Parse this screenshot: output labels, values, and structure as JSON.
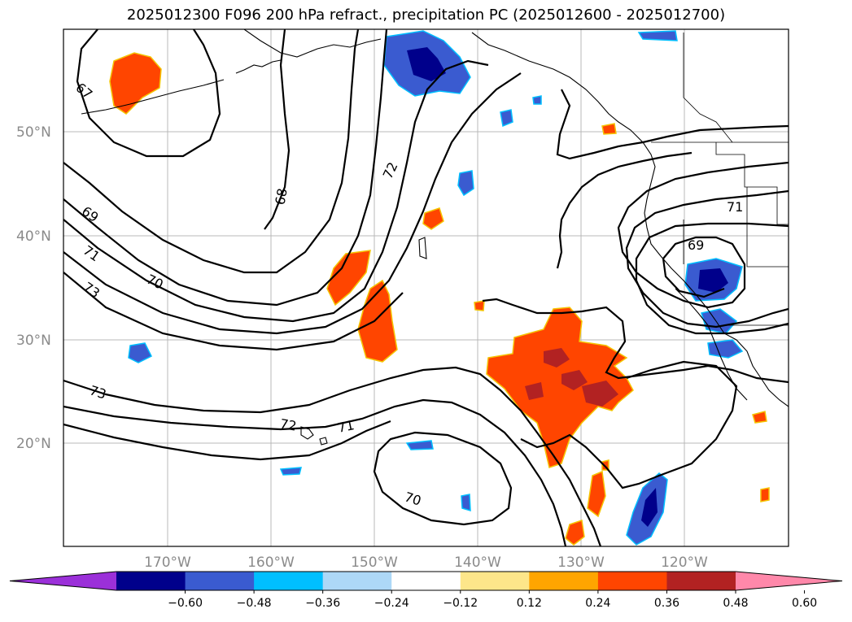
{
  "title": "2025012300 F096 200 hPa refract., precipitation PC (2025012600 - 2025012700)",
  "lat_labels": [
    "50°N",
    "40°N",
    "30°N",
    "20°N"
  ],
  "lon_labels": [
    "170°W",
    "160°W",
    "150°W",
    "140°W",
    "130°W",
    "120°W"
  ],
  "contour_labels": [
    "67",
    "68",
    "72",
    "69",
    "71",
    "70",
    "73",
    "73",
    "72",
    "71",
    "70",
    "71",
    "69"
  ],
  "colorbar": {
    "colors": [
      "#9b30d9",
      "#00008b",
      "#3a5bd0",
      "#00bfff",
      "#add8f7",
      "#ffffff",
      "#fde68a",
      "#ffa500",
      "#ff4500",
      "#b22222",
      "#ff88aa"
    ],
    "tick_labels": [
      "−0.60",
      "−0.48",
      "−0.36",
      "−0.24",
      "−0.12",
      "0.12",
      "0.24",
      "0.36",
      "0.48",
      "0.60"
    ]
  }
}
